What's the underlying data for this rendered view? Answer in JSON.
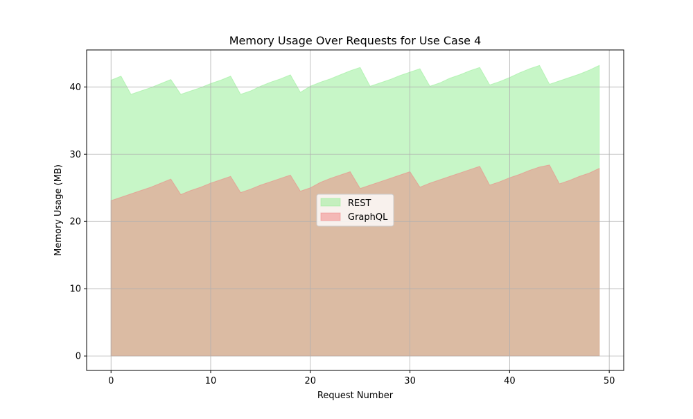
{
  "chart_data": {
    "type": "area",
    "title": "Memory Usage Over Requests for Use Case 4",
    "xlabel": "Request Number",
    "ylabel": "Memory Usage (MB)",
    "xlim": [
      -2.45,
      51.45
    ],
    "ylim": [
      -2.15,
      45.5
    ],
    "xticks": [
      0,
      10,
      20,
      30,
      40,
      50
    ],
    "yticks": [
      0,
      10,
      20,
      30,
      40
    ],
    "grid": true,
    "legend_position": "center",
    "x": [
      0,
      1,
      2,
      3,
      4,
      5,
      6,
      7,
      8,
      9,
      10,
      11,
      12,
      13,
      14,
      15,
      16,
      17,
      18,
      19,
      20,
      21,
      22,
      23,
      24,
      25,
      26,
      27,
      28,
      29,
      30,
      31,
      32,
      33,
      34,
      35,
      36,
      37,
      38,
      39,
      40,
      41,
      42,
      43,
      44,
      45,
      46,
      47,
      48,
      49
    ],
    "series": [
      {
        "name": "REST",
        "color": "#90ee90",
        "values": [
          41.0,
          41.6,
          38.9,
          39.4,
          39.9,
          40.5,
          41.1,
          38.9,
          39.4,
          39.9,
          40.5,
          41.0,
          41.6,
          38.9,
          39.4,
          40.1,
          40.7,
          41.2,
          41.8,
          39.2,
          40.1,
          40.7,
          41.2,
          41.8,
          42.4,
          42.9,
          40.1,
          40.6,
          41.1,
          41.7,
          42.2,
          42.7,
          40.1,
          40.6,
          41.3,
          41.8,
          42.4,
          42.9,
          40.3,
          40.8,
          41.4,
          42.1,
          42.7,
          43.2,
          40.4,
          40.9,
          41.4,
          41.9,
          42.5,
          43.2
        ]
      },
      {
        "name": "GraphQL",
        "color": "#f08080",
        "values": [
          23.1,
          23.6,
          24.1,
          24.6,
          25.1,
          25.7,
          26.3,
          24.0,
          24.6,
          25.1,
          25.7,
          26.2,
          26.7,
          24.3,
          24.8,
          25.4,
          25.9,
          26.4,
          26.9,
          24.5,
          25.0,
          25.8,
          26.4,
          26.9,
          27.4,
          24.9,
          25.4,
          25.9,
          26.4,
          26.9,
          27.4,
          25.1,
          25.7,
          26.2,
          26.7,
          27.2,
          27.7,
          28.2,
          25.4,
          25.9,
          26.5,
          27.0,
          27.6,
          28.1,
          28.4,
          25.6,
          26.1,
          26.7,
          27.2,
          27.9
        ]
      }
    ]
  }
}
